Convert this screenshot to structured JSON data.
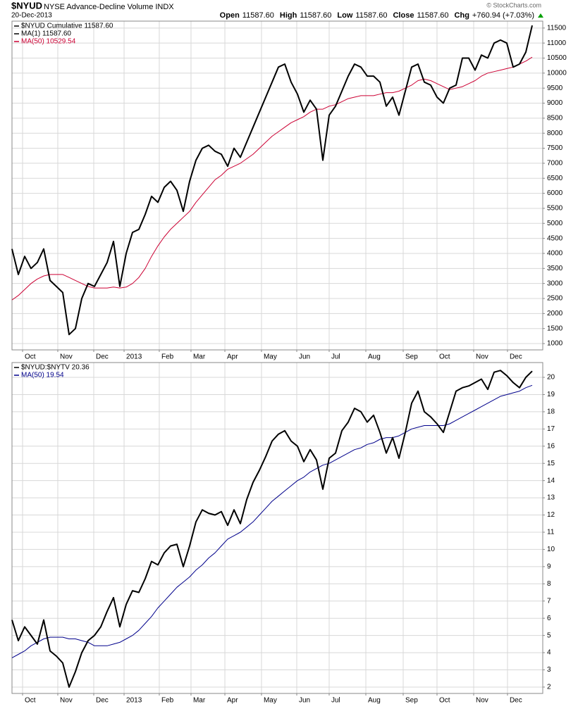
{
  "header": {
    "symbol": "$NYUD",
    "name": "NYSE Advance-Decline Volume INDX",
    "date": "20-Dec-2013",
    "copyright": "© StockCharts.com",
    "quote": [
      {
        "label": "Open",
        "value": "11587.60"
      },
      {
        "label": "High",
        "value": "11587.60"
      },
      {
        "label": "Low",
        "value": "11587.60"
      },
      {
        "label": "Close",
        "value": "11587.60"
      },
      {
        "label": "Chg",
        "value": "+760.94 (+7.03%)"
      }
    ]
  },
  "chart_data": [
    {
      "type": "line",
      "extra_legend": [
        "MA(1) 11587.60"
      ],
      "xlim": [
        0,
        83.67
      ],
      "xticks": [
        {
          "value": 1.67,
          "label": "Oct"
        },
        {
          "value": 7.22,
          "label": "Nov"
        },
        {
          "value": 12.89,
          "label": "Dec"
        },
        {
          "value": 17.67,
          "label": "2013"
        },
        {
          "value": 23.22,
          "label": "Feb"
        },
        {
          "value": 28.22,
          "label": "Mar"
        },
        {
          "value": 33.56,
          "label": "Apr"
        },
        {
          "value": 39.33,
          "label": "May"
        },
        {
          "value": 44.89,
          "label": "Jun"
        },
        {
          "value": 50,
          "label": "Jul"
        },
        {
          "value": 55.78,
          "label": "Aug"
        },
        {
          "value": 61.67,
          "label": "Sep"
        },
        {
          "value": 67,
          "label": "Oct"
        },
        {
          "value": 72.78,
          "label": "Nov"
        },
        {
          "value": 78.11,
          "label": "Dec"
        }
      ],
      "ylim": [
        790,
        11730
      ],
      "yticks": [
        1000,
        1500,
        2000,
        2500,
        3000,
        3500,
        4000,
        4500,
        5000,
        5500,
        6000,
        6500,
        7000,
        7500,
        8000,
        8500,
        9000,
        9500,
        10000,
        10500,
        11000,
        11500
      ],
      "grid": true,
      "series": [
        {
          "name": "$NYUD  Cumulative 11587.60",
          "color": "#000000",
          "width": 2,
          "values": [
            4150,
            3300,
            3900,
            3500,
            3700,
            4150,
            3100,
            2900,
            2700,
            1300,
            1500,
            2500,
            3000,
            2900,
            3300,
            3700,
            4400,
            2900,
            4000,
            4700,
            4800,
            5300,
            5900,
            5700,
            6200,
            6400,
            6100,
            5400,
            6400,
            7100,
            7500,
            7600,
            7400,
            7300,
            6900,
            7500,
            7200,
            7700,
            8200,
            8700,
            9200,
            9700,
            10200,
            10300,
            9700,
            9300,
            8700,
            9100,
            8800,
            7100,
            8600,
            8900,
            9400,
            9900,
            10300,
            10200,
            9900,
            9900,
            9700,
            8900,
            9200,
            8600,
            9400,
            10200,
            10300,
            9700,
            9600,
            9200,
            9000,
            9500,
            9600,
            10500,
            10500,
            10100,
            10600,
            10500,
            11000,
            11100,
            11000,
            10200,
            10300,
            10700,
            11587.6
          ]
        },
        {
          "name": "MA(50) 10529.54",
          "color": "#cc0033",
          "width": 1,
          "values": [
            2450,
            2600,
            2800,
            3000,
            3150,
            3250,
            3300,
            3300,
            3300,
            3200,
            3100,
            3000,
            2900,
            2850,
            2850,
            2850,
            2880,
            2850,
            2880,
            3000,
            3200,
            3500,
            3900,
            4250,
            4550,
            4800,
            5000,
            5200,
            5400,
            5700,
            5950,
            6200,
            6450,
            6600,
            6800,
            6900,
            7000,
            7150,
            7300,
            7500,
            7700,
            7900,
            8050,
            8200,
            8350,
            8450,
            8550,
            8700,
            8800,
            8800,
            8900,
            8950,
            9050,
            9150,
            9200,
            9250,
            9250,
            9250,
            9300,
            9350,
            9350,
            9400,
            9500,
            9600,
            9750,
            9800,
            9750,
            9650,
            9550,
            9450,
            9500,
            9550,
            9650,
            9750,
            9900,
            10000,
            10050,
            10100,
            10150,
            10200,
            10300,
            10400,
            10529.54
          ]
        }
      ]
    },
    {
      "type": "line",
      "xlim": [
        0,
        83.67
      ],
      "xticks": [
        {
          "value": 1.67,
          "label": "Oct"
        },
        {
          "value": 7.22,
          "label": "Nov"
        },
        {
          "value": 12.89,
          "label": "Dec"
        },
        {
          "value": 17.67,
          "label": "2013"
        },
        {
          "value": 23.22,
          "label": "Feb"
        },
        {
          "value": 28.22,
          "label": "Mar"
        },
        {
          "value": 33.56,
          "label": "Apr"
        },
        {
          "value": 39.33,
          "label": "May"
        },
        {
          "value": 44.89,
          "label": "Jun"
        },
        {
          "value": 50,
          "label": "Jul"
        },
        {
          "value": 55.78,
          "label": "Aug"
        },
        {
          "value": 61.67,
          "label": "Sep"
        },
        {
          "value": 67,
          "label": "Oct"
        },
        {
          "value": 72.78,
          "label": "Nov"
        },
        {
          "value": 78.11,
          "label": "Dec"
        }
      ],
      "ylim": [
        1.63,
        20.86
      ],
      "yticks": [
        2,
        3,
        4,
        5,
        6,
        7,
        8,
        9,
        10,
        11,
        12,
        13,
        14,
        15,
        16,
        17,
        18,
        19,
        20
      ],
      "grid": true,
      "series": [
        {
          "name": "$NYUD:$NYTV  20.36",
          "color": "#000000",
          "width": 2,
          "values": [
            5.9,
            4.7,
            5.5,
            5.0,
            4.5,
            5.9,
            4.1,
            3.8,
            3.4,
            2.0,
            2.9,
            4.0,
            4.7,
            5.0,
            5.5,
            6.4,
            7.2,
            5.5,
            6.8,
            7.6,
            7.5,
            8.3,
            9.3,
            9.1,
            9.8,
            10.2,
            10.3,
            9.0,
            10.2,
            11.6,
            12.3,
            12.1,
            12.0,
            12.2,
            11.4,
            12.3,
            11.5,
            12.9,
            13.9,
            14.6,
            15.4,
            16.3,
            16.7,
            16.9,
            16.3,
            16.0,
            15.1,
            15.8,
            15.2,
            13.5,
            15.3,
            15.6,
            16.9,
            17.4,
            18.2,
            18.0,
            17.4,
            17.8,
            16.8,
            15.6,
            16.5,
            15.3,
            16.8,
            18.5,
            19.2,
            18.0,
            17.7,
            17.3,
            16.8,
            18.0,
            19.2,
            19.4,
            19.5,
            19.7,
            19.9,
            19.3,
            20.3,
            20.4,
            20.1,
            19.7,
            19.4,
            20.0,
            20.36
          ]
        },
        {
          "name": "MA(50) 19.54",
          "color": "#00008b",
          "width": 1,
          "values": [
            3.7,
            3.9,
            4.1,
            4.4,
            4.6,
            4.8,
            4.9,
            4.9,
            4.9,
            4.8,
            4.8,
            4.7,
            4.6,
            4.4,
            4.4,
            4.4,
            4.5,
            4.6,
            4.8,
            5.0,
            5.3,
            5.7,
            6.1,
            6.6,
            7.0,
            7.4,
            7.8,
            8.1,
            8.4,
            8.8,
            9.1,
            9.5,
            9.8,
            10.2,
            10.6,
            10.8,
            11.0,
            11.3,
            11.6,
            12.0,
            12.4,
            12.8,
            13.1,
            13.4,
            13.7,
            14.0,
            14.2,
            14.5,
            14.7,
            14.9,
            15.0,
            15.2,
            15.4,
            15.6,
            15.8,
            15.9,
            16.1,
            16.2,
            16.4,
            16.5,
            16.5,
            16.6,
            16.8,
            17.0,
            17.1,
            17.2,
            17.2,
            17.2,
            17.2,
            17.3,
            17.5,
            17.7,
            17.9,
            18.1,
            18.3,
            18.5,
            18.7,
            18.9,
            19.0,
            19.1,
            19.2,
            19.4,
            19.54
          ]
        }
      ]
    }
  ]
}
